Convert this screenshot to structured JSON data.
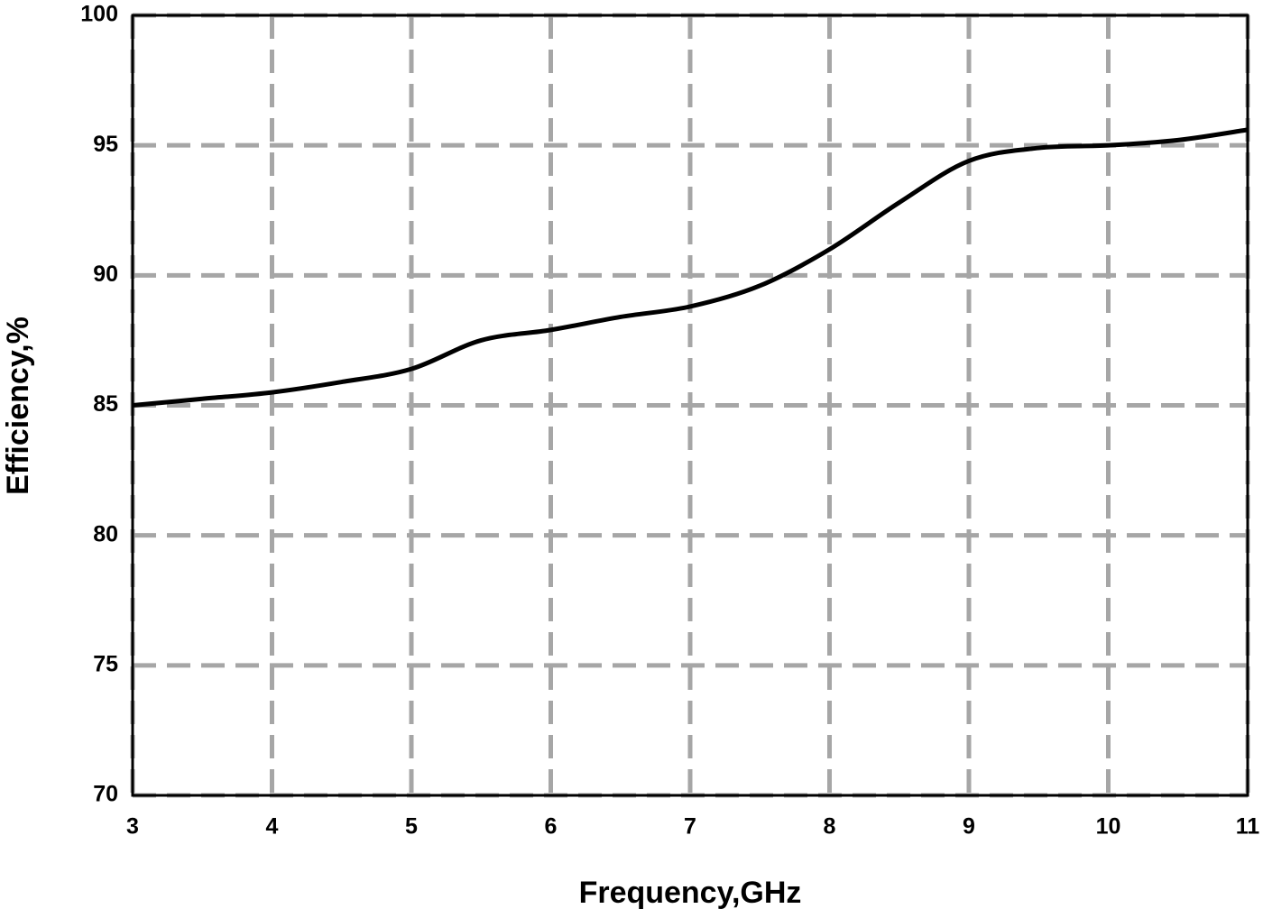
{
  "chart_data": {
    "type": "line",
    "x_label": "Frequency,GHz",
    "y_label": "Efficiency,%",
    "x": [
      3,
      3.5,
      4,
      4.5,
      5,
      5.5,
      6,
      6.5,
      7,
      7.5,
      8,
      8.5,
      9,
      9.5,
      10,
      10.5,
      11
    ],
    "values": [
      85.0,
      85.25,
      85.5,
      85.9,
      86.4,
      87.5,
      87.9,
      88.4,
      88.8,
      89.6,
      91.0,
      92.8,
      94.4,
      94.9,
      95.0,
      95.2,
      95.6
    ],
    "color": "#000000",
    "xlim": [
      3,
      11
    ],
    "xticks": [
      3,
      4,
      5,
      6,
      7,
      8,
      9,
      10,
      11
    ],
    "ylim": [
      70,
      100
    ],
    "yticks": [
      70,
      75,
      80,
      85,
      90,
      95,
      100
    ],
    "grid": true
  }
}
